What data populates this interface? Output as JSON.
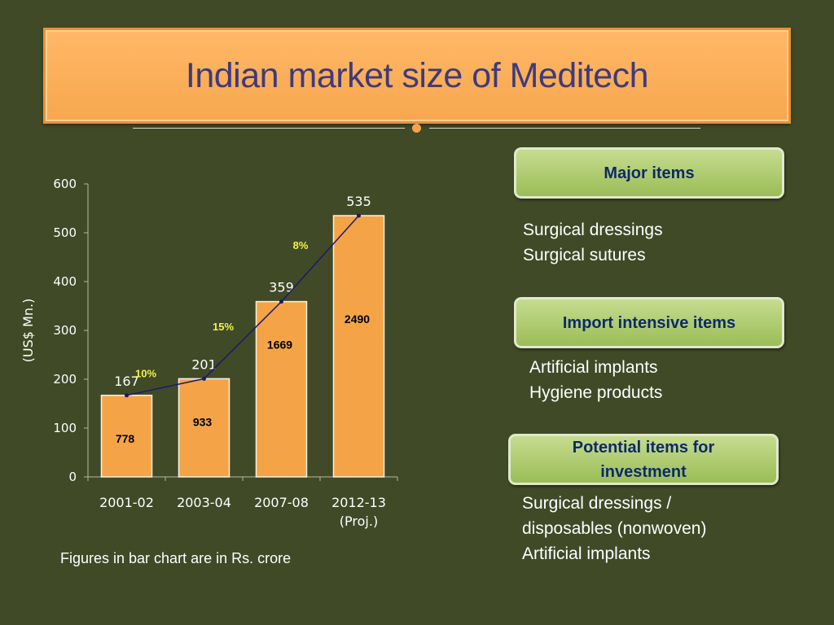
{
  "slide": {
    "title": "Indian market size of Meditech",
    "chart_note": "Figures in bar chart  are in Rs. crore"
  },
  "chart_data": {
    "type": "bar",
    "categories": [
      "2001-02",
      "2003-04",
      "2007-08",
      "2012-13"
    ],
    "category_sublabels": [
      "",
      "",
      "",
      "(Proj.)"
    ],
    "values": [
      167,
      201,
      359,
      535
    ],
    "value_labels": [
      "167",
      "201",
      "359",
      "535"
    ],
    "inner_labels": [
      "778",
      "933",
      "1669",
      "2490"
    ],
    "growth_labels": [
      "10%",
      "15%",
      "8%"
    ],
    "ylabel": "(US$ Mn.)",
    "ylim": [
      0,
      600
    ],
    "yticks": [
      0,
      100,
      200,
      300,
      400,
      500,
      600
    ],
    "overlay_line": true,
    "grid": false,
    "colors": {
      "bar": "#f4a447",
      "bar_stroke": "#f7f2e6",
      "line": "#1c1870",
      "growth_label": "#f2f24a",
      "axis_text": "#ffffff"
    }
  },
  "panels": {
    "major": {
      "heading": "Major items",
      "items": [
        "Surgical dressings",
        "Surgical sutures"
      ]
    },
    "import": {
      "heading": "Import intensive items",
      "items": [
        "Artificial implants",
        "Hygiene  products"
      ]
    },
    "potential": {
      "heading_line1": "Potential items for",
      "heading_line2": "investment",
      "items": [
        "Surgical dressings /",
        "disposables (nonwoven)",
        "Artificial implants"
      ]
    }
  }
}
